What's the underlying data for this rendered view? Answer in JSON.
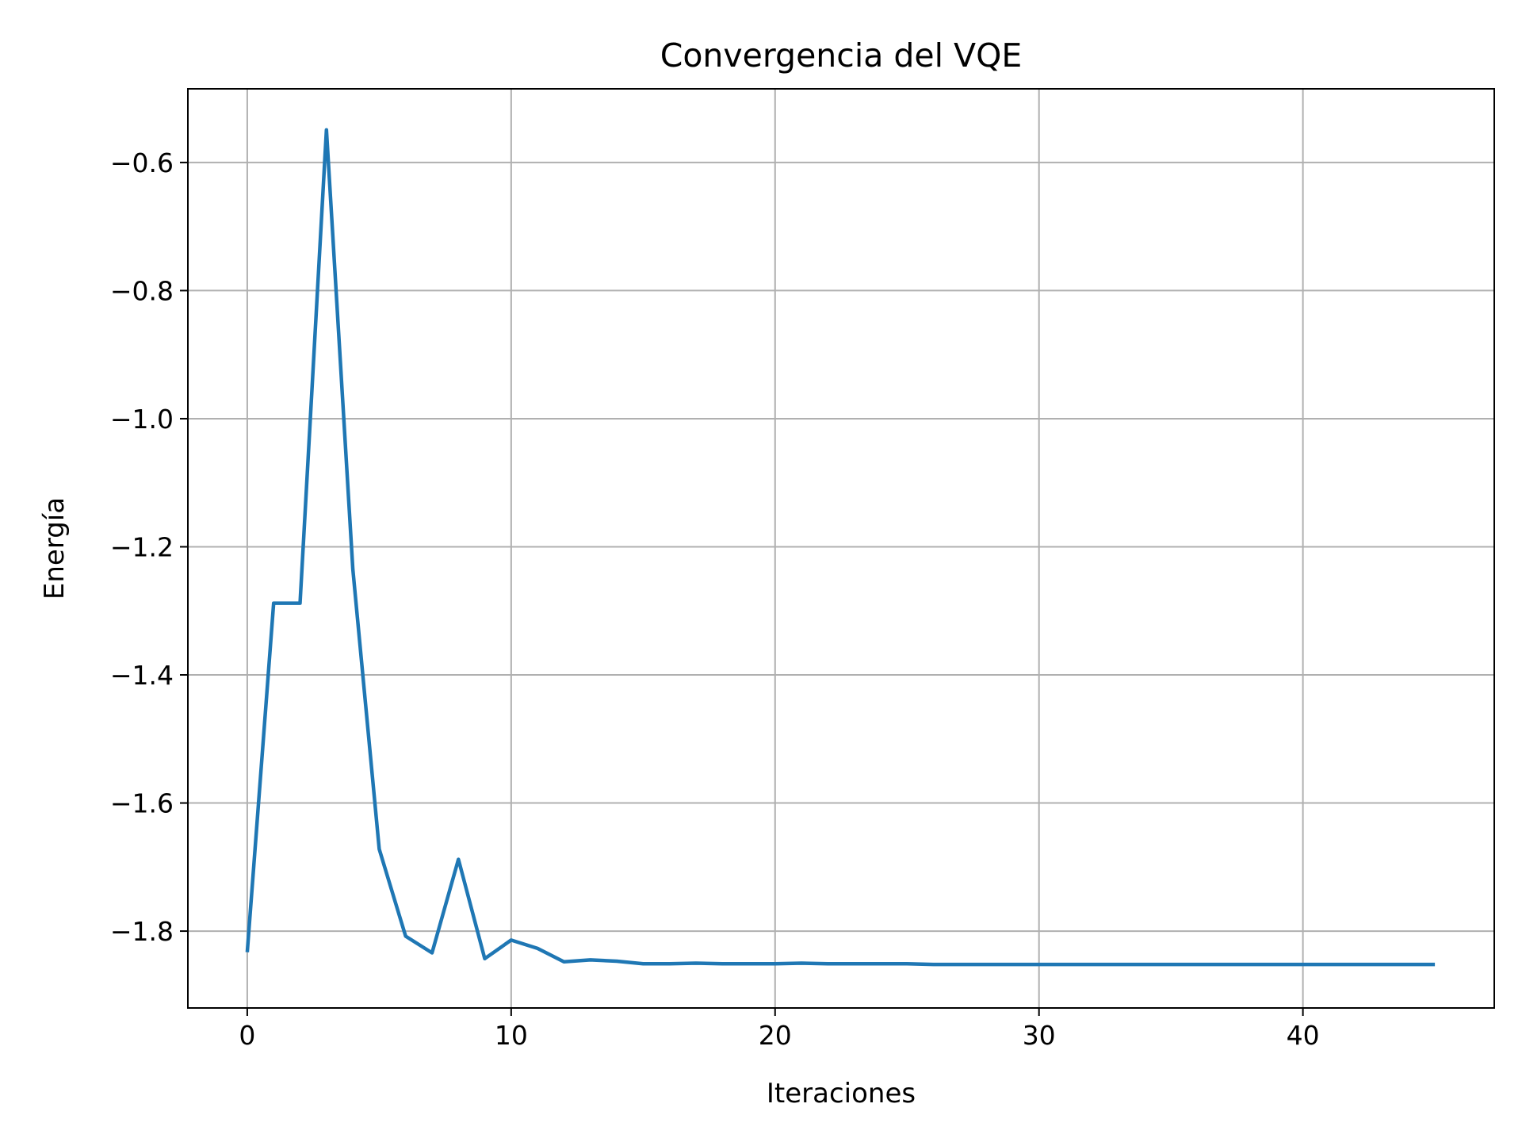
{
  "chart_data": {
    "type": "line",
    "title": "Convergencia del VQE",
    "xlabel": "Iteraciones",
    "ylabel": "Energía",
    "xlim": [
      -2.25,
      47.25
    ],
    "ylim": [
      -1.92,
      -0.485
    ],
    "grid": true,
    "x_ticks": [
      0,
      10,
      20,
      30,
      40
    ],
    "x_tick_labels": [
      "0",
      "10",
      "20",
      "30",
      "40"
    ],
    "y_ticks": [
      -0.6,
      -0.8,
      -1.0,
      -1.2,
      -1.4,
      -1.6,
      -1.8
    ],
    "y_tick_labels": [
      "−0.6",
      "−0.8",
      "−1.0",
      "−1.2",
      "−1.4",
      "−1.6",
      "−1.8"
    ],
    "series_color": "#1f77b4",
    "series": [
      {
        "x": [
          0,
          1,
          2,
          3,
          4,
          5,
          6,
          7,
          8,
          9,
          10,
          11,
          12,
          13,
          14,
          15,
          16,
          17,
          18,
          19,
          20,
          21,
          22,
          23,
          24,
          25,
          26,
          27,
          28,
          29,
          30,
          31,
          32,
          33,
          34,
          35,
          36,
          37,
          38,
          39,
          40,
          41,
          42,
          43,
          44,
          45
        ],
        "values": [
          -1.833,
          -1.288,
          -1.288,
          -0.549,
          -1.235,
          -1.672,
          -1.808,
          -1.834,
          -1.688,
          -1.843,
          -1.814,
          -1.827,
          -1.848,
          -1.845,
          -1.847,
          -1.851,
          -1.851,
          -1.85,
          -1.851,
          -1.851,
          -1.851,
          -1.85,
          -1.851,
          -1.851,
          -1.851,
          -1.851,
          -1.852,
          -1.852,
          -1.852,
          -1.852,
          -1.852,
          -1.852,
          -1.852,
          -1.852,
          -1.852,
          -1.852,
          -1.852,
          -1.852,
          -1.852,
          -1.852,
          -1.852,
          -1.852,
          -1.852,
          -1.852,
          -1.852,
          -1.852
        ]
      }
    ]
  }
}
